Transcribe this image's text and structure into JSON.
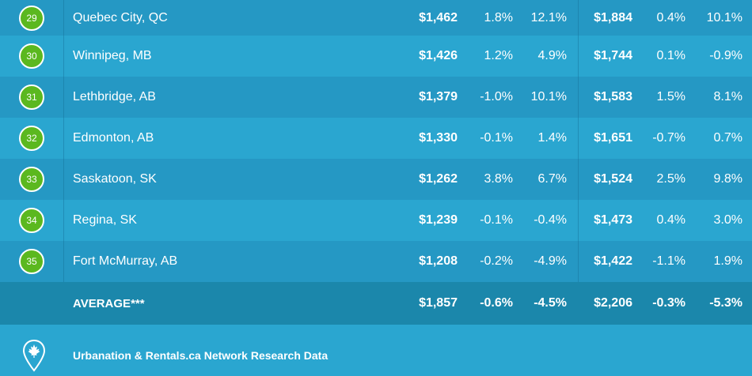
{
  "rows": [
    {
      "rank": "29",
      "city": "Quebec City, QC",
      "c1": "$1,462",
      "c2": "1.8%",
      "c3": "12.1%",
      "c4": "$1,884",
      "c5": "0.4%",
      "c6": "10.1%"
    },
    {
      "rank": "30",
      "city": "Winnipeg, MB",
      "c1": "$1,426",
      "c2": "1.2%",
      "c3": "4.9%",
      "c4": "$1,744",
      "c5": "0.1%",
      "c6": "-0.9%"
    },
    {
      "rank": "31",
      "city": "Lethbridge, AB",
      "c1": "$1,379",
      "c2": "-1.0%",
      "c3": "10.1%",
      "c4": "$1,583",
      "c5": "1.5%",
      "c6": "8.1%"
    },
    {
      "rank": "32",
      "city": "Edmonton, AB",
      "c1": "$1,330",
      "c2": "-0.1%",
      "c3": "1.4%",
      "c4": "$1,651",
      "c5": "-0.7%",
      "c6": "0.7%"
    },
    {
      "rank": "33",
      "city": "Saskatoon, SK",
      "c1": "$1,262",
      "c2": "3.8%",
      "c3": "6.7%",
      "c4": "$1,524",
      "c5": "2.5%",
      "c6": "9.8%"
    },
    {
      "rank": "34",
      "city": "Regina, SK",
      "c1": "$1,239",
      "c2": "-0.1%",
      "c3": "-0.4%",
      "c4": "$1,473",
      "c5": "0.4%",
      "c6": "3.0%"
    },
    {
      "rank": "35",
      "city": "Fort McMurray, AB",
      "c1": "$1,208",
      "c2": "-0.2%",
      "c3": "-4.9%",
      "c4": "$1,422",
      "c5": "-1.1%",
      "c6": "1.9%"
    }
  ],
  "average": {
    "label": "AVERAGE***",
    "c1": "$1,857",
    "c2": "-0.6%",
    "c3": "-4.5%",
    "c4": "$2,206",
    "c5": "-0.3%",
    "c6": "-5.3%"
  },
  "footer": {
    "source": "Urbanation & Rentals.ca Network Research Data",
    "icon": "maple-leaf-pin-icon"
  },
  "colors": {
    "badge": "#5bb81f",
    "row_dark": "#2598c4",
    "row_light": "#2aa6d0",
    "average_row": "#1b87ab"
  }
}
